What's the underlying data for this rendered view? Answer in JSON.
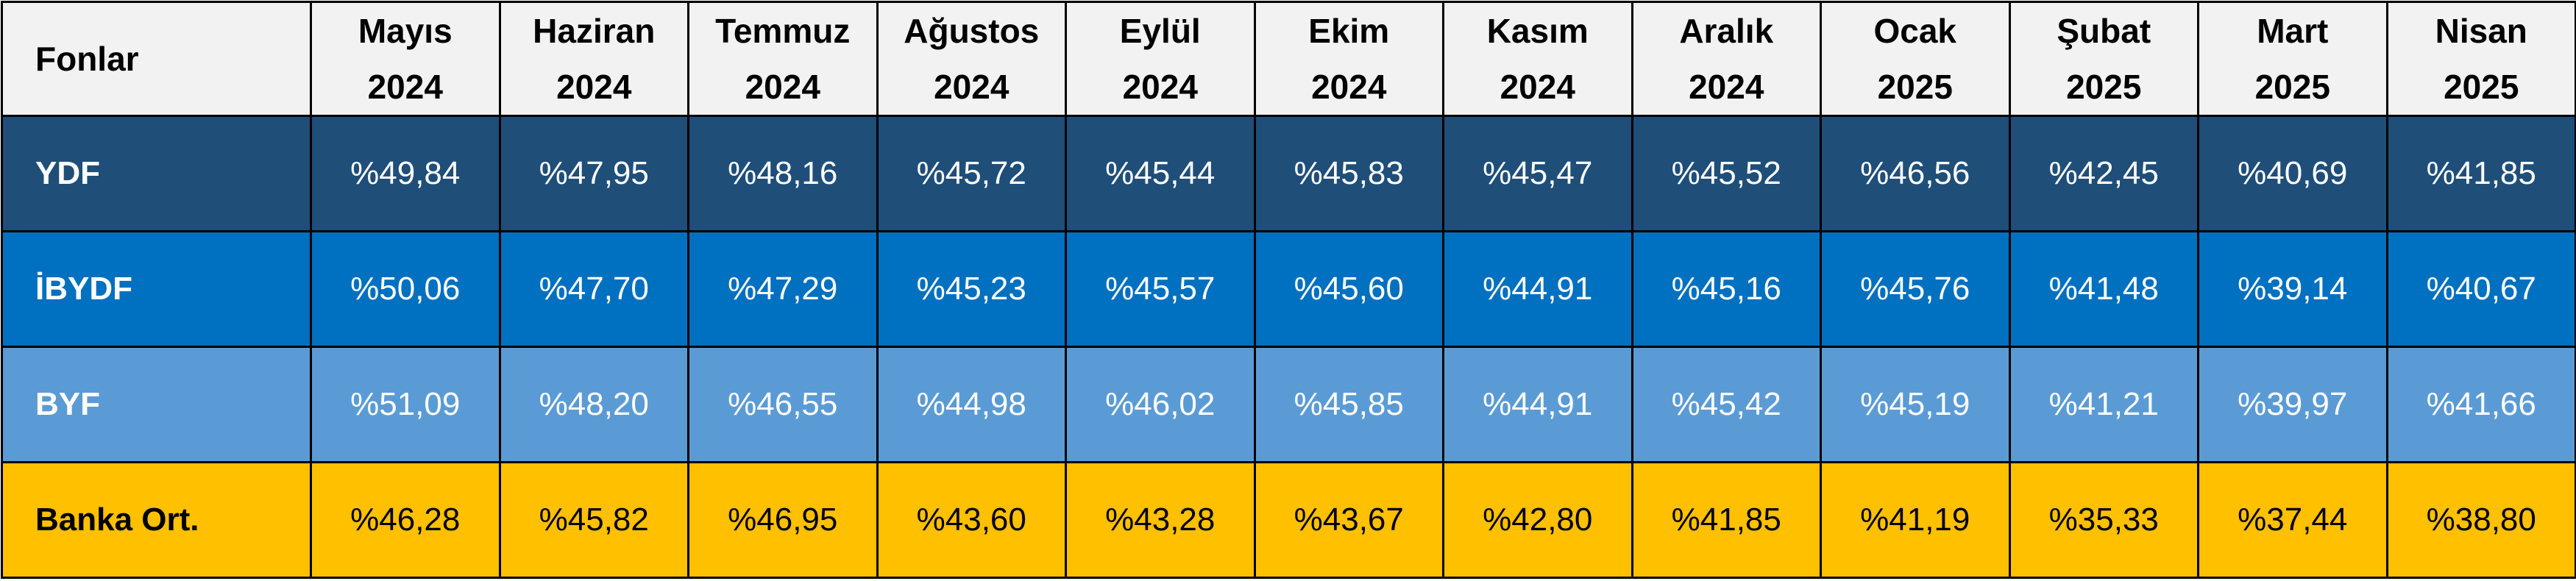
{
  "table": {
    "header": {
      "fund_label": "Fonlar",
      "months": [
        {
          "name": "Mayıs",
          "year": "2024"
        },
        {
          "name": "Haziran",
          "year": "2024"
        },
        {
          "name": "Temmuz",
          "year": "2024"
        },
        {
          "name": "Ağustos",
          "year": "2024"
        },
        {
          "name": "Eylül",
          "year": "2024"
        },
        {
          "name": "Ekim",
          "year": "2024"
        },
        {
          "name": "Kasım",
          "year": "2024"
        },
        {
          "name": "Aralık",
          "year": "2024"
        },
        {
          "name": "Ocak",
          "year": "2025"
        },
        {
          "name": "Şubat",
          "year": "2025"
        },
        {
          "name": "Mart",
          "year": "2025"
        },
        {
          "name": "Nisan",
          "year": "2025"
        }
      ]
    },
    "rows": [
      {
        "label": "YDF",
        "color": "#1f4e79",
        "values": [
          "%49,84",
          "%47,95",
          "%48,16",
          "%45,72",
          "%45,44",
          "%45,83",
          "%45,47",
          "%45,52",
          "%46,56",
          "%42,45",
          "%40,69",
          "%41,85"
        ]
      },
      {
        "label": "İBYDF",
        "color": "#0070c0",
        "values": [
          "%50,06",
          "%47,70",
          "%47,29",
          "%45,23",
          "%45,57",
          "%45,60",
          "%44,91",
          "%45,16",
          "%45,76",
          "%41,48",
          "%39,14",
          "%40,67"
        ]
      },
      {
        "label": "BYF",
        "color": "#5b9bd5",
        "values": [
          "%51,09",
          "%48,20",
          "%46,55",
          "%44,98",
          "%46,02",
          "%45,85",
          "%44,91",
          "%45,42",
          "%45,19",
          "%41,21",
          "%39,97",
          "%41,66"
        ]
      },
      {
        "label": "Banka Ort.",
        "color": "#ffc000",
        "values": [
          "%46,28",
          "%45,82",
          "%46,95",
          "%43,60",
          "%43,28",
          "%43,67",
          "%42,80",
          "%41,85",
          "%41,19",
          "%35,33",
          "%37,44",
          "%38,80"
        ]
      }
    ]
  }
}
